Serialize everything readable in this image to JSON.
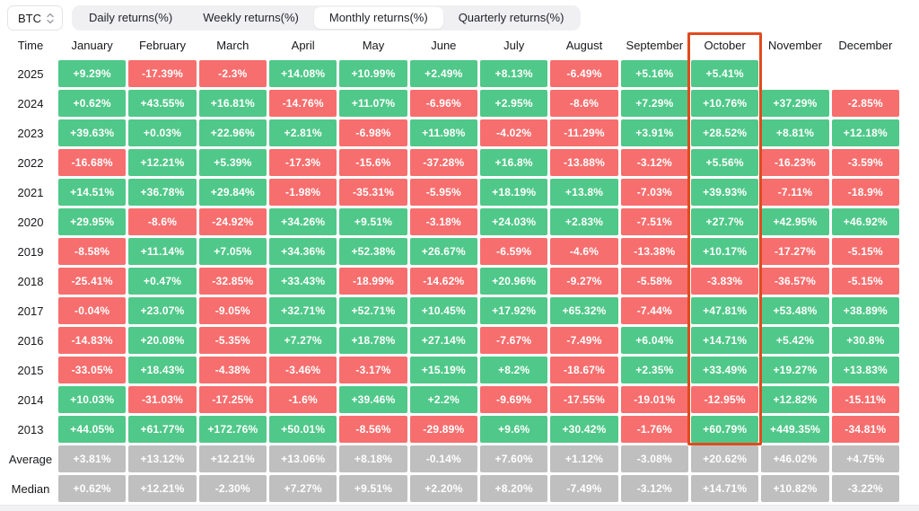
{
  "asset_selector": {
    "value": "BTC",
    "icon": "updown-chevron-icon"
  },
  "tabs": [
    {
      "label": "Daily returns(%)",
      "active": false
    },
    {
      "label": "Weekly returns(%)",
      "active": false
    },
    {
      "label": "Monthly returns(%)",
      "active": true
    },
    {
      "label": "Quarterly returns(%)",
      "active": false
    }
  ],
  "table": {
    "time_header": "Time",
    "months": [
      "January",
      "February",
      "March",
      "April",
      "May",
      "June",
      "July",
      "August",
      "September",
      "October",
      "November",
      "December"
    ],
    "highlighted_month": "October",
    "colors": {
      "positive": "#50c889",
      "negative": "#f76e6e",
      "summary": "#bfbfbf",
      "highlight_border": "#e04a1f"
    },
    "rows": [
      {
        "label": "2025",
        "type": "year",
        "values": [
          "+9.29%",
          "-17.39%",
          "-2.3%",
          "+14.08%",
          "+10.99%",
          "+2.49%",
          "+8.13%",
          "-6.49%",
          "+5.16%",
          "+5.41%",
          "",
          ""
        ]
      },
      {
        "label": "2024",
        "type": "year",
        "values": [
          "+0.62%",
          "+43.55%",
          "+16.81%",
          "-14.76%",
          "+11.07%",
          "-6.96%",
          "+2.95%",
          "-8.6%",
          "+7.29%",
          "+10.76%",
          "+37.29%",
          "-2.85%"
        ]
      },
      {
        "label": "2023",
        "type": "year",
        "values": [
          "+39.63%",
          "+0.03%",
          "+22.96%",
          "+2.81%",
          "-6.98%",
          "+11.98%",
          "-4.02%",
          "-11.29%",
          "+3.91%",
          "+28.52%",
          "+8.81%",
          "+12.18%"
        ]
      },
      {
        "label": "2022",
        "type": "year",
        "values": [
          "-16.68%",
          "+12.21%",
          "+5.39%",
          "-17.3%",
          "-15.6%",
          "-37.28%",
          "+16.8%",
          "-13.88%",
          "-3.12%",
          "+5.56%",
          "-16.23%",
          "-3.59%"
        ]
      },
      {
        "label": "2021",
        "type": "year",
        "values": [
          "+14.51%",
          "+36.78%",
          "+29.84%",
          "-1.98%",
          "-35.31%",
          "-5.95%",
          "+18.19%",
          "+13.8%",
          "-7.03%",
          "+39.93%",
          "-7.11%",
          "-18.9%"
        ]
      },
      {
        "label": "2020",
        "type": "year",
        "values": [
          "+29.95%",
          "-8.6%",
          "-24.92%",
          "+34.26%",
          "+9.51%",
          "-3.18%",
          "+24.03%",
          "+2.83%",
          "-7.51%",
          "+27.7%",
          "+42.95%",
          "+46.92%"
        ]
      },
      {
        "label": "2019",
        "type": "year",
        "values": [
          "-8.58%",
          "+11.14%",
          "+7.05%",
          "+34.36%",
          "+52.38%",
          "+26.67%",
          "-6.59%",
          "-4.6%",
          "-13.38%",
          "+10.17%",
          "-17.27%",
          "-5.15%"
        ]
      },
      {
        "label": "2018",
        "type": "year",
        "values": [
          "-25.41%",
          "+0.47%",
          "-32.85%",
          "+33.43%",
          "-18.99%",
          "-14.62%",
          "+20.96%",
          "-9.27%",
          "-5.58%",
          "-3.83%",
          "-36.57%",
          "-5.15%"
        ]
      },
      {
        "label": "2017",
        "type": "year",
        "values": [
          "-0.04%",
          "+23.07%",
          "-9.05%",
          "+32.71%",
          "+52.71%",
          "+10.45%",
          "+17.92%",
          "+65.32%",
          "-7.44%",
          "+47.81%",
          "+53.48%",
          "+38.89%"
        ]
      },
      {
        "label": "2016",
        "type": "year",
        "values": [
          "-14.83%",
          "+20.08%",
          "-5.35%",
          "+7.27%",
          "+18.78%",
          "+27.14%",
          "-7.67%",
          "-7.49%",
          "+6.04%",
          "+14.71%",
          "+5.42%",
          "+30.8%"
        ]
      },
      {
        "label": "2015",
        "type": "year",
        "values": [
          "-33.05%",
          "+18.43%",
          "-4.38%",
          "-3.46%",
          "-3.17%",
          "+15.19%",
          "+8.2%",
          "-18.67%",
          "+2.35%",
          "+33.49%",
          "+19.27%",
          "+13.83%"
        ]
      },
      {
        "label": "2014",
        "type": "year",
        "values": [
          "+10.03%",
          "-31.03%",
          "-17.25%",
          "-1.6%",
          "+39.46%",
          "+2.2%",
          "-9.69%",
          "-17.55%",
          "-19.01%",
          "-12.95%",
          "+12.82%",
          "-15.11%"
        ]
      },
      {
        "label": "2013",
        "type": "year",
        "values": [
          "+44.05%",
          "+61.77%",
          "+172.76%",
          "+50.01%",
          "-8.56%",
          "-29.89%",
          "+9.6%",
          "+30.42%",
          "-1.76%",
          "+60.79%",
          "+449.35%",
          "-34.81%"
        ]
      },
      {
        "label": "Average",
        "type": "summary",
        "values": [
          "+3.81%",
          "+13.12%",
          "+12.21%",
          "+13.06%",
          "+8.18%",
          "-0.14%",
          "+7.60%",
          "+1.12%",
          "-3.08%",
          "+20.62%",
          "+46.02%",
          "+4.75%"
        ]
      },
      {
        "label": "Median",
        "type": "summary",
        "values": [
          "+0.62%",
          "+12.21%",
          "-2.30%",
          "+7.27%",
          "+9.51%",
          "+2.20%",
          "+8.20%",
          "-7.49%",
          "-3.12%",
          "+14.71%",
          "+10.82%",
          "-3.22%"
        ]
      }
    ]
  }
}
